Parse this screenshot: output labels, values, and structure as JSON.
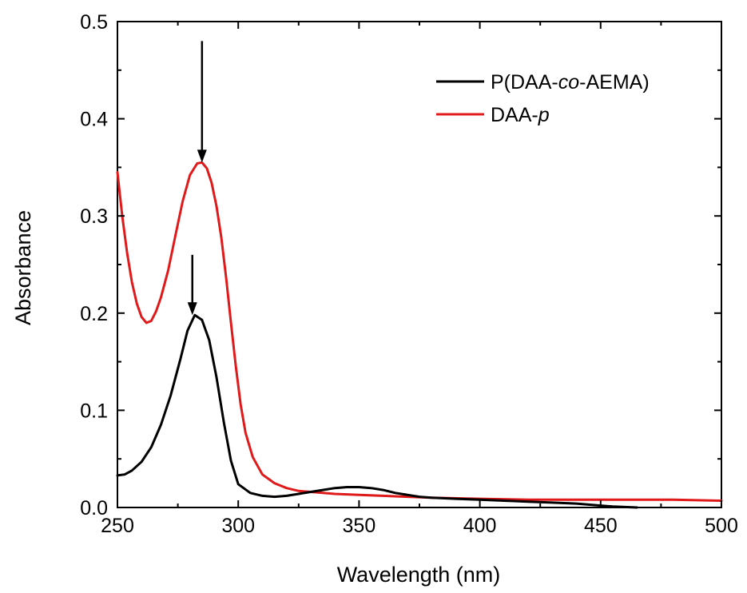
{
  "chart_data": {
    "type": "line",
    "title": "",
    "xlabel": "Wavelength (nm)",
    "ylabel": "Absorbance",
    "xlim": [
      250,
      500
    ],
    "ylim": [
      0.0,
      0.5
    ],
    "xticks": [
      "250",
      "300",
      "350",
      "400",
      "450",
      "500"
    ],
    "yticks": [
      "0.0",
      "0.1",
      "0.2",
      "0.3",
      "0.4",
      "0.5"
    ],
    "grid": false,
    "legend_position": "top-right",
    "series": [
      {
        "name_parts": [
          {
            "text": "P(DAA-",
            "italic": false
          },
          {
            "text": "co",
            "italic": true
          },
          {
            "text": "-AEMA)",
            "italic": false
          }
        ],
        "color": "#000000",
        "x": [
          250,
          253,
          256,
          260,
          264,
          268,
          272,
          276,
          279,
          282,
          285,
          288,
          291,
          294,
          297,
          300,
          305,
          310,
          315,
          320,
          325,
          330,
          335,
          340,
          345,
          350,
          355,
          360,
          365,
          370,
          375,
          380,
          390,
          400,
          410,
          420,
          430,
          440,
          450,
          455,
          460,
          465
        ],
        "y": [
          0.033,
          0.034,
          0.038,
          0.047,
          0.062,
          0.085,
          0.115,
          0.152,
          0.182,
          0.198,
          0.193,
          0.172,
          0.134,
          0.088,
          0.048,
          0.024,
          0.015,
          0.012,
          0.011,
          0.012,
          0.014,
          0.016,
          0.018,
          0.02,
          0.021,
          0.021,
          0.02,
          0.018,
          0.015,
          0.013,
          0.011,
          0.01,
          0.009,
          0.008,
          0.007,
          0.006,
          0.005,
          0.004,
          0.002,
          0.001,
          0.0005,
          0.0
        ]
      },
      {
        "name_parts": [
          {
            "text": "DAA-",
            "italic": false
          },
          {
            "text": "p",
            "italic": true
          }
        ],
        "color": "#e0191a",
        "x": [
          250,
          252,
          254,
          256,
          258,
          260,
          262,
          264,
          266,
          268,
          271,
          274,
          277,
          280,
          283,
          285,
          287,
          289,
          291,
          293,
          295,
          297,
          299,
          301,
          303,
          306,
          310,
          315,
          320,
          325,
          330,
          335,
          340,
          350,
          360,
          370,
          380,
          400,
          420,
          440,
          460,
          480,
          500
        ],
        "y": [
          0.345,
          0.3,
          0.262,
          0.232,
          0.21,
          0.196,
          0.19,
          0.192,
          0.202,
          0.216,
          0.244,
          0.28,
          0.315,
          0.342,
          0.354,
          0.355,
          0.349,
          0.334,
          0.31,
          0.278,
          0.236,
          0.19,
          0.145,
          0.106,
          0.077,
          0.052,
          0.034,
          0.025,
          0.02,
          0.017,
          0.016,
          0.015,
          0.014,
          0.013,
          0.012,
          0.011,
          0.01,
          0.009,
          0.008,
          0.008,
          0.008,
          0.008,
          0.007
        ]
      }
    ],
    "annotations": [
      {
        "type": "arrow",
        "x": 285,
        "y_from": 0.48,
        "y_to": 0.355
      },
      {
        "type": "arrow",
        "x": 281,
        "y_from": 0.26,
        "y_to": 0.198
      }
    ]
  }
}
